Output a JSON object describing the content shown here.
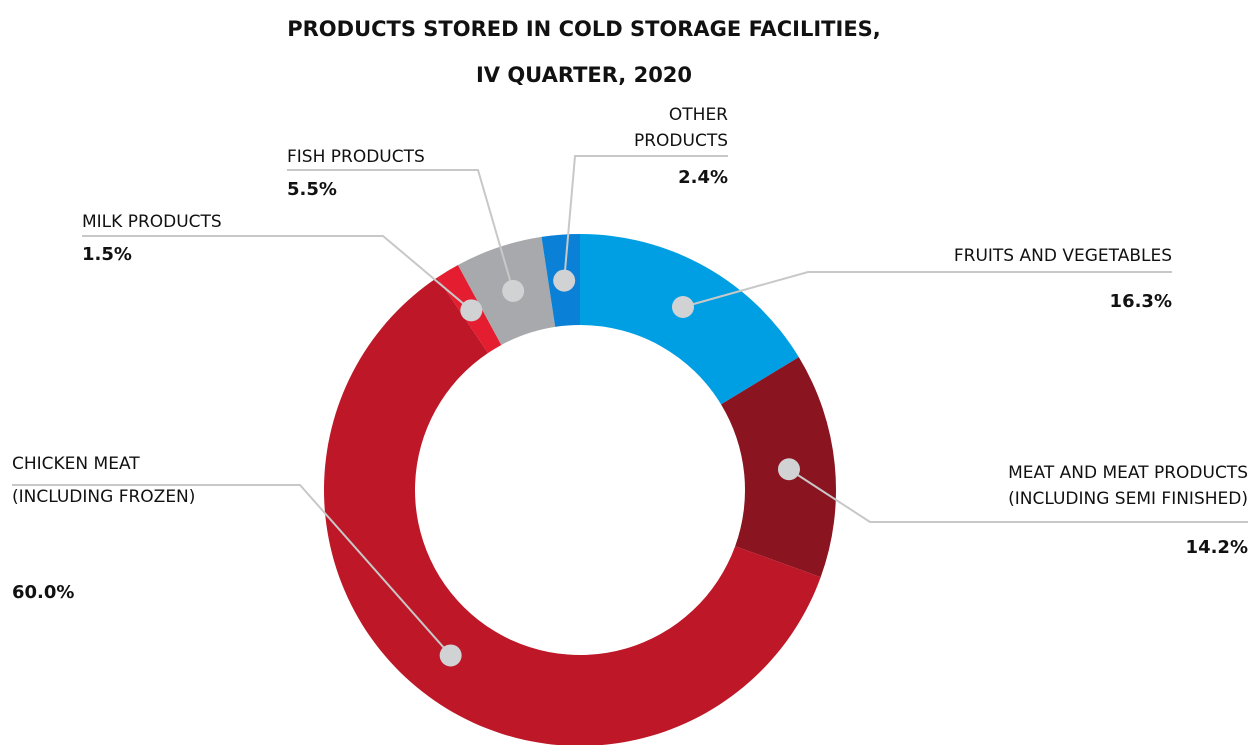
{
  "chart_data": {
    "type": "donut",
    "title": [
      "PRODUCTS STORED IN COLD STORAGE FACILITIES,",
      "IV QUARTER, 2020"
    ],
    "categories": [
      [
        "FRUITS AND VEGETABLES"
      ],
      [
        "MEAT AND MEAT PRODUCTS",
        "(INCLUDING SEMI FINISHED)"
      ],
      [
        "CHICKEN MEAT",
        "(INCLUDING FROZEN)"
      ],
      [
        "MILK PRODUCTS"
      ],
      [
        "FISH PRODUCTS"
      ],
      [
        "OTHER",
        "PRODUCTS"
      ]
    ],
    "values": [
      16.3,
      14.2,
      60.0,
      1.5,
      5.5,
      2.4
    ],
    "value_labels": [
      "16.3%",
      "14.2%",
      "60.0%",
      "1.5%",
      "5.5%",
      "2.4%"
    ],
    "colors": [
      "#009fe3",
      "#8a1420",
      "#be1828",
      "#e41e30",
      "#a7a9ac",
      "#0a80d6"
    ]
  }
}
